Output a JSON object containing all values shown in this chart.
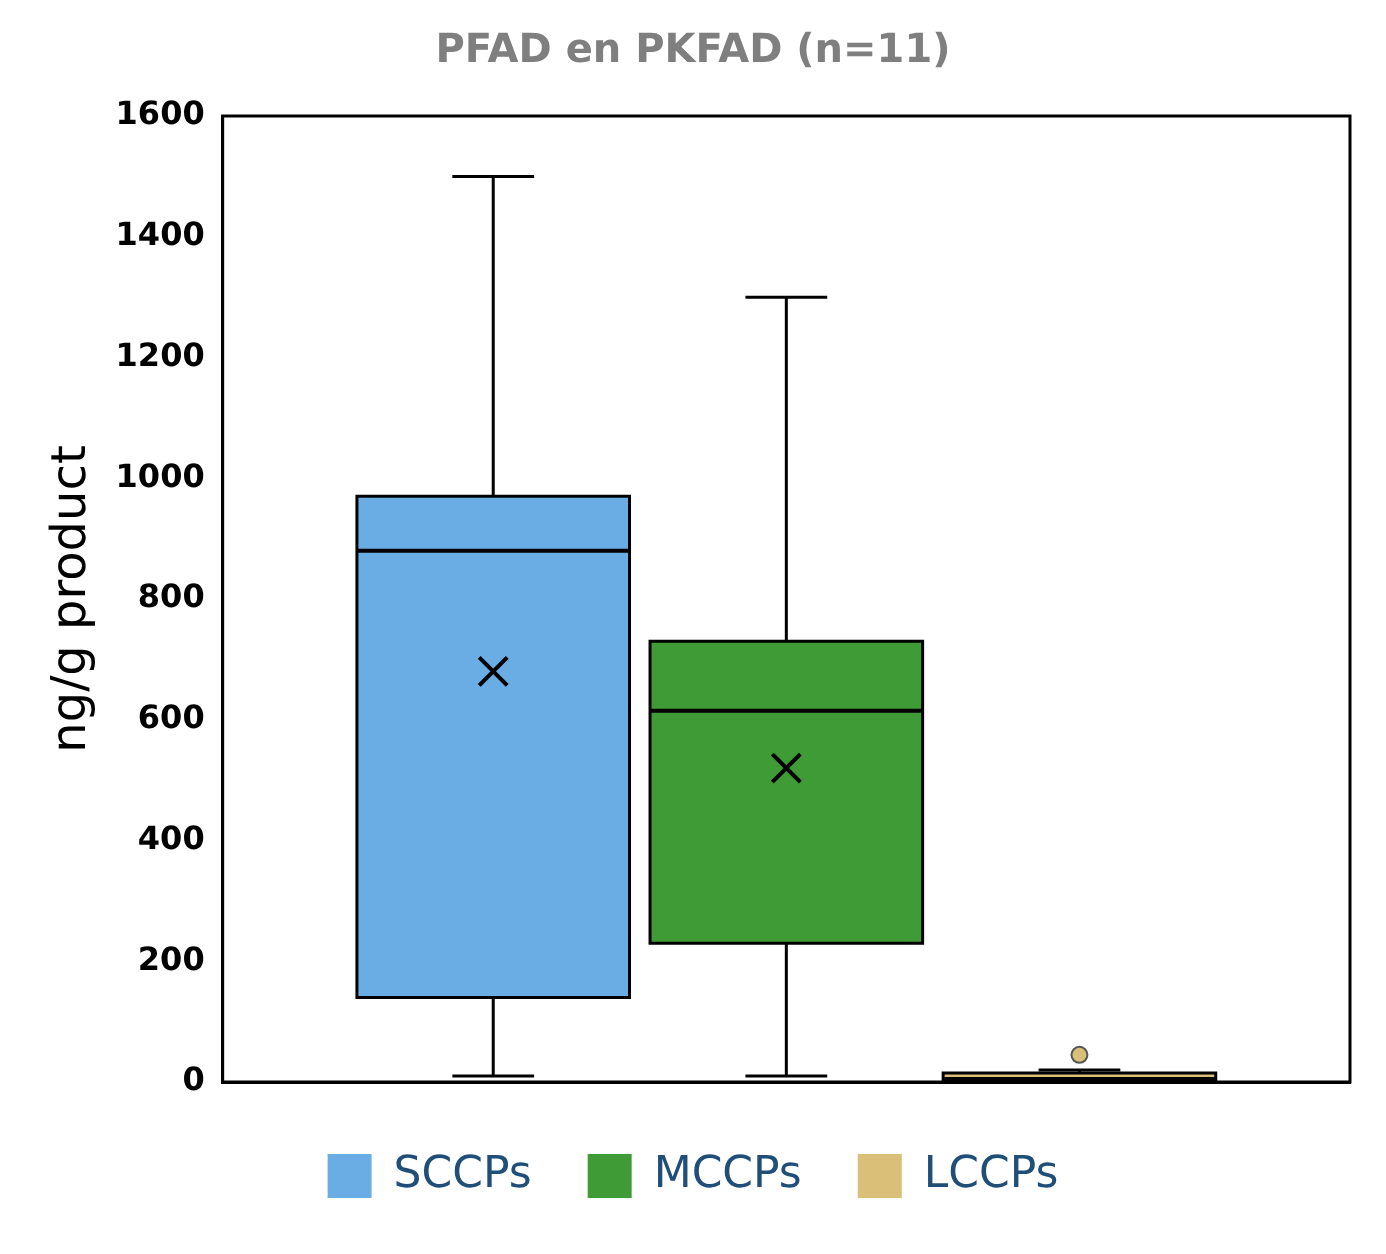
{
  "chart_data": {
    "type": "box",
    "title": "PFAD en PKFAD (n=11)",
    "ylabel": "ng/g product",
    "categories": [
      null
    ],
    "series": [
      {
        "name": "SCCPs",
        "color": "#6aade4",
        "boxes": [
          {
            "low": 10,
            "q1": 140,
            "median": 880,
            "q3": 970,
            "high": 1500,
            "mean": 680
          }
        ]
      },
      {
        "name": "MCCPs",
        "color": "#3f9b35",
        "boxes": [
          {
            "low": 10,
            "q1": 230,
            "median": 615,
            "q3": 730,
            "high": 1300,
            "mean": 520
          }
        ]
      },
      {
        "name": "LCCPs",
        "color": "#d9bf77",
        "boxes": [
          {
            "low": 0,
            "q1": 2,
            "median": 5,
            "q3": 15,
            "high": 20,
            "outliers": [
              45
            ]
          }
        ]
      }
    ],
    "ylim": [
      0,
      1600
    ],
    "yticks": [
      0,
      200,
      400,
      600,
      800,
      1000,
      1200,
      1400,
      1600
    ],
    "grid": false,
    "legend": "bottom",
    "tick_labels": "y"
  }
}
